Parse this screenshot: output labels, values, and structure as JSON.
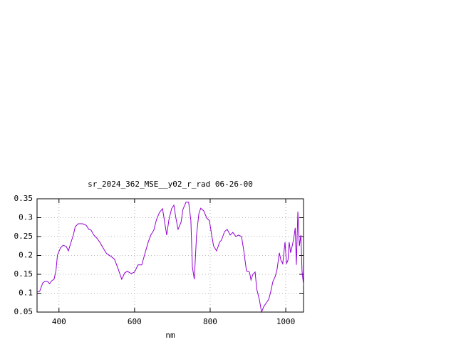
{
  "chart_data": {
    "type": "line",
    "title": "sr_2024_362_MSE__y02_r_rad 06-26-00",
    "xlabel": "nm",
    "xlim": [
      342,
      1047
    ],
    "ylim": [
      0.05,
      0.35
    ],
    "xticks": [
      400,
      600,
      800,
      1000
    ],
    "yticks": [
      0.05,
      0.1,
      0.15,
      0.2,
      0.25,
      0.3,
      0.35
    ],
    "grid": true,
    "series": [
      {
        "color": "#9400d3",
        "x": [
          342,
          349,
          357,
          362,
          370,
          375,
          381,
          387,
          392,
          396,
          404,
          411,
          419,
          425,
          430,
          438,
          443,
          451,
          462,
          472,
          479,
          485,
          492,
          500,
          508,
          519,
          526,
          538,
          547,
          557,
          566,
          574,
          581,
          591,
          600,
          609,
          619,
          628,
          636,
          643,
          651,
          658,
          666,
          674,
          679,
          685,
          691,
          698,
          704,
          709,
          715,
          723,
          728,
          736,
          743,
          749,
          753,
          758,
          764,
          770,
          775,
          783,
          791,
          798,
          804,
          809,
          817,
          825,
          830,
          838,
          845,
          853,
          860,
          868,
          875,
          883,
          889,
          896,
          904,
          908,
          913,
          919,
          923,
          930,
          936,
          942,
          949,
          955,
          960,
          966,
          972,
          977,
          983,
          987,
          992,
          998,
          1002,
          1006,
          1009,
          1013,
          1017,
          1021,
          1025,
          1028,
          1032,
          1036,
          1040,
          1043,
          1047
        ],
        "values": [
          0.103,
          0.105,
          0.127,
          0.131,
          0.131,
          0.125,
          0.133,
          0.137,
          0.159,
          0.201,
          0.22,
          0.227,
          0.224,
          0.212,
          0.229,
          0.254,
          0.276,
          0.284,
          0.284,
          0.28,
          0.269,
          0.267,
          0.254,
          0.246,
          0.235,
          0.216,
          0.205,
          0.197,
          0.19,
          0.163,
          0.137,
          0.154,
          0.158,
          0.152,
          0.156,
          0.175,
          0.175,
          0.207,
          0.235,
          0.254,
          0.267,
          0.295,
          0.314,
          0.324,
          0.292,
          0.254,
          0.295,
          0.324,
          0.333,
          0.301,
          0.269,
          0.288,
          0.322,
          0.341,
          0.341,
          0.292,
          0.169,
          0.137,
          0.254,
          0.31,
          0.325,
          0.318,
          0.299,
          0.292,
          0.254,
          0.225,
          0.212,
          0.235,
          0.241,
          0.263,
          0.269,
          0.254,
          0.261,
          0.25,
          0.254,
          0.25,
          0.212,
          0.159,
          0.156,
          0.135,
          0.15,
          0.156,
          0.112,
          0.084,
          0.05,
          0.065,
          0.075,
          0.084,
          0.103,
          0.131,
          0.144,
          0.163,
          0.207,
          0.188,
          0.178,
          0.235,
          0.178,
          0.188,
          0.235,
          0.207,
          0.225,
          0.244,
          0.273,
          0.175,
          0.316,
          0.225,
          0.254,
          0.159,
          0.122
        ]
      }
    ]
  }
}
